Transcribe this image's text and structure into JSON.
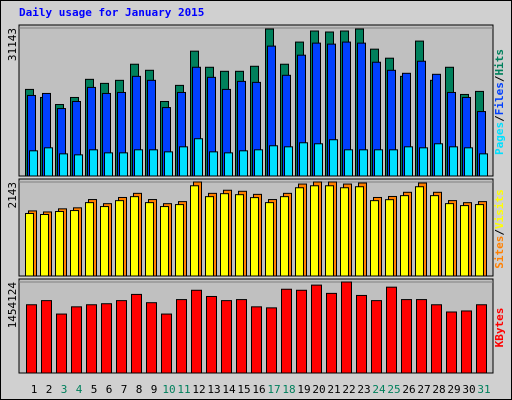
{
  "chart_data": {
    "type": "bar",
    "title": "Daily usage for January 2015",
    "categories": [
      "1",
      "2",
      "3",
      "4",
      "5",
      "6",
      "7",
      "8",
      "9",
      "10",
      "11",
      "12",
      "13",
      "14",
      "15",
      "16",
      "17",
      "18",
      "19",
      "20",
      "21",
      "22",
      "23",
      "24",
      "25",
      "26",
      "27",
      "28",
      "29",
      "30",
      "31"
    ],
    "category_colors": [
      "#000000",
      "#000000",
      "#00805c",
      "#00805c",
      "#000000",
      "#000000",
      "#000000",
      "#000000",
      "#000000",
      "#00805c",
      "#00805c",
      "#000000",
      "#000000",
      "#000000",
      "#000000",
      "#000000",
      "#00805c",
      "#00805c",
      "#000000",
      "#000000",
      "#000000",
      "#000000",
      "#000000",
      "#00805c",
      "#00805c",
      "#000000",
      "#000000",
      "#000000",
      "#000000",
      "#000000",
      "#00805c"
    ],
    "legend_separator": "/",
    "panels": [
      {
        "ylim": [
          0,
          31143
        ],
        "yticks": [
          31143
        ],
        "grid": true,
        "series": [
          {
            "name": "Pages",
            "color": "#00e0ff",
            "values": [
              5300,
              5930,
              4660,
              4450,
              5510,
              4870,
              4870,
              5510,
              5510,
              5080,
              6140,
              7840,
              5080,
              4870,
              5300,
              5510,
              6360,
              6140,
              6990,
              6780,
              7630,
              5510,
              5510,
              5510,
              5510,
              6140,
              5930,
              6780,
              6140,
              5930,
              4660
            ]
          },
          {
            "name": "Files",
            "color": "#0040ff",
            "values": [
              16950,
              17370,
              14190,
              15680,
              18640,
              17370,
              17580,
              20970,
              20130,
              14400,
              17580,
              22880,
              20760,
              18220,
              19910,
              19700,
              27330,
              21190,
              25420,
              27960,
              27750,
              28180,
              27960,
              23940,
              22240,
              21610,
              24150,
              21400,
              17580,
              16530,
              13560
            ]
          },
          {
            "name": "Hits",
            "color": "#00805c",
            "values": [
              18220,
              16525,
              15040,
              16525,
              20340,
              19490,
              20130,
              23520,
              22245,
              15680,
              19070,
              26270,
              22880,
              22030,
              22030,
              23090,
              30930,
              23520,
              28180,
              30510,
              30300,
              30510,
              30930,
              26690,
              24790,
              20970,
              28390,
              20130,
              22880,
              17160,
              17800
            ]
          }
        ]
      },
      {
        "ylim": [
          0,
          2143
        ],
        "yticks": [
          2143
        ],
        "grid": true,
        "series": [
          {
            "name": "Sites",
            "color": "#ff8000",
            "values": [
              1484,
              1460,
              1531,
              1554,
              1743,
              1649,
              1790,
              1884,
              1743,
              1649,
              1696,
              2143,
              1884,
              1955,
              1931,
              1861,
              1743,
              1884,
              2096,
              2143,
              2143,
              2096,
              2120,
              1790,
              1813,
              1908,
              2120,
              1908,
              1719,
              1672,
              1696
            ]
          },
          {
            "name": "Visits",
            "color": "#ffff00",
            "values": [
              1425,
              1402,
              1470,
              1492,
              1673,
              1583,
              1718,
              1809,
              1673,
              1583,
              1628,
              2057,
              1809,
              1877,
              1854,
              1787,
              1673,
              1809,
              2012,
              2057,
              2057,
              2012,
              2035,
              1718,
              1740,
              1832,
              2035,
              1832,
              1650,
              1605,
              1628
            ]
          }
        ]
      },
      {
        "ylim": [
          0,
          1454124
        ],
        "yticks": [
          1454124
        ],
        "grid": true,
        "series": [
          {
            "name": "KBytes",
            "color": "#ff0000",
            "values": [
              1090600,
              1156700,
              941900,
              1057500,
              1090600,
              1107100,
              1156700,
              1255800,
              1123600,
              941900,
              1173200,
              1321900,
              1222800,
              1156700,
              1173200,
              1057500,
              1041000,
              1338400,
              1321900,
              1404500,
              1272300,
              1454124,
              1239300,
              1156700,
              1371500,
              1173200,
              1173200,
              1090600,
              974900,
              991400,
              1090600
            ]
          }
        ]
      }
    ]
  }
}
